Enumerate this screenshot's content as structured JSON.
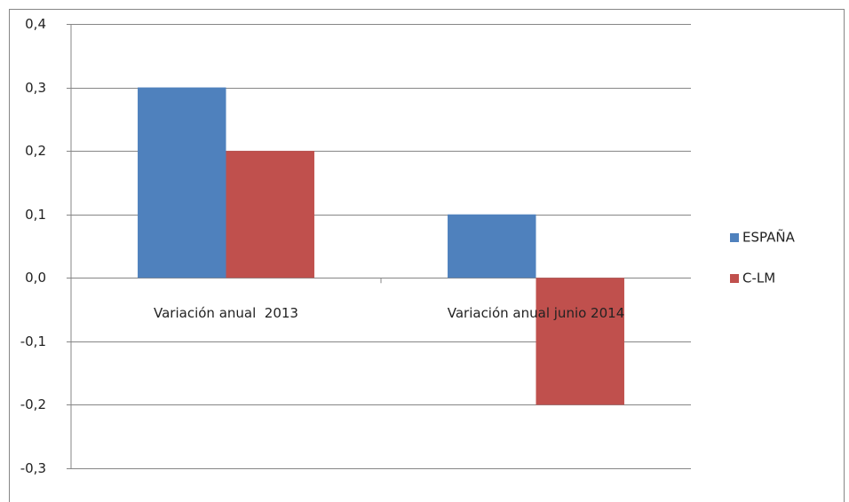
{
  "chart_data": {
    "type": "bar",
    "categories": [
      "Variación anual  2013",
      "Variación anual junio 2014"
    ],
    "series": [
      {
        "name": "ESPAÑA",
        "color": "#4f81bd",
        "values": [
          0.3,
          0.1
        ]
      },
      {
        "name": "C-LM",
        "color": "#c0504d",
        "values": [
          0.2,
          -0.2
        ]
      }
    ],
    "ylim": [
      -0.3,
      0.4
    ],
    "yticks": [
      {
        "value": -0.3,
        "label": "-0,3"
      },
      {
        "value": -0.2,
        "label": "-0,2"
      },
      {
        "value": -0.1,
        "label": "-0,1"
      },
      {
        "value": 0,
        "label": "0,0"
      },
      {
        "value": 0.1,
        "label": "0,1"
      },
      {
        "value": 0.2,
        "label": "0,2"
      },
      {
        "value": 0.3,
        "label": "0,3"
      },
      {
        "value": 0.4,
        "label": "0,4"
      }
    ],
    "grid": true,
    "legend": "right"
  }
}
